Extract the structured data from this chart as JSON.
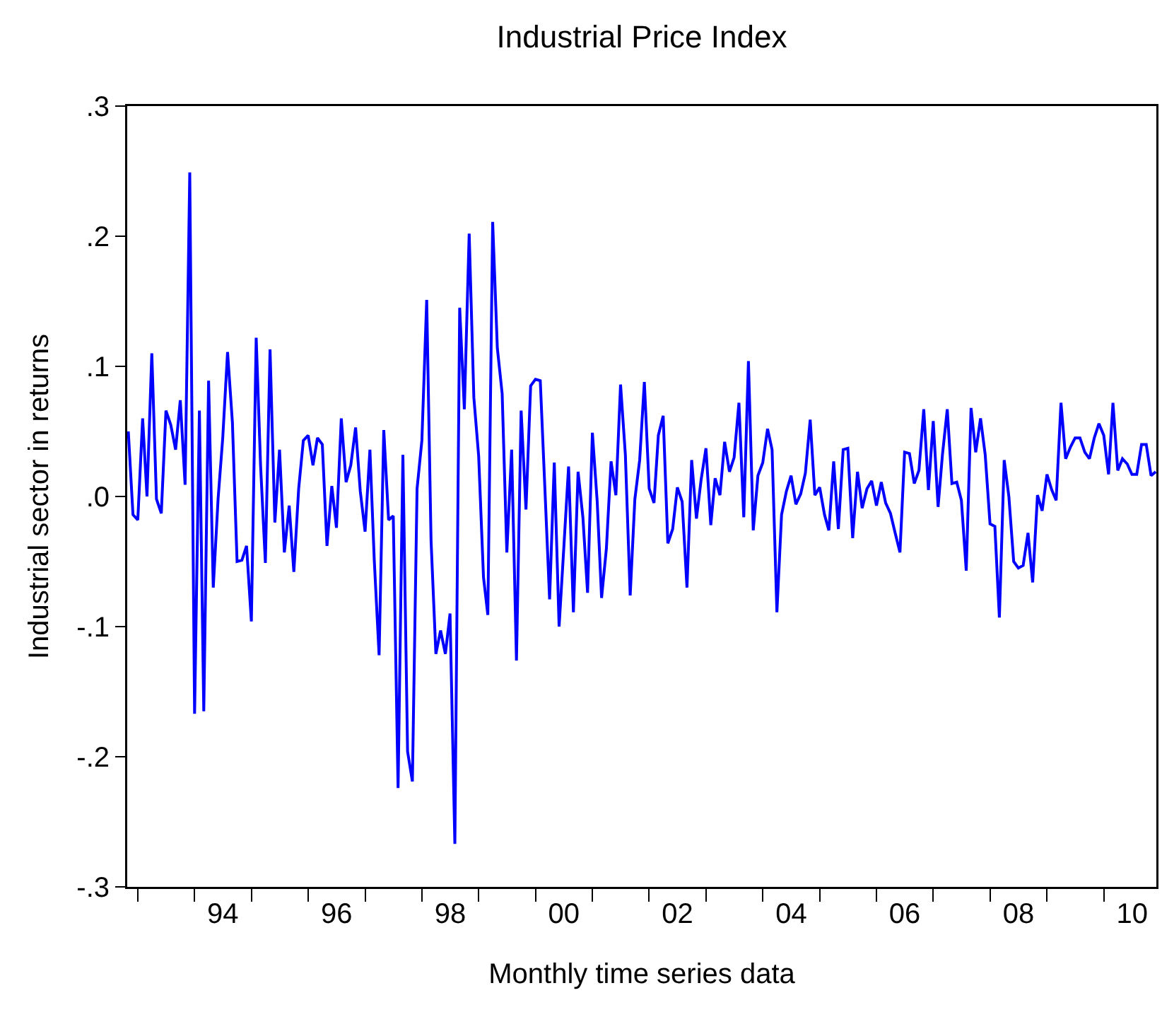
{
  "chart_data": {
    "type": "line",
    "title": "Industrial Price Index",
    "xlabel": "Monthly time series data",
    "ylabel": "Industrial sector in returns",
    "x": [
      "1992-11",
      "1992-12",
      "1993-01",
      "1993-02",
      "1993-03",
      "1993-04",
      "1993-05",
      "1993-06",
      "1993-07",
      "1993-08",
      "1993-09",
      "1993-10",
      "1993-11",
      "1993-12",
      "1994-01",
      "1994-02",
      "1994-03",
      "1994-04",
      "1994-05",
      "1994-06",
      "1994-07",
      "1994-08",
      "1994-09",
      "1994-10",
      "1994-11",
      "1994-12",
      "1995-01",
      "1995-02",
      "1995-03",
      "1995-04",
      "1995-05",
      "1995-06",
      "1995-07",
      "1995-08",
      "1995-09",
      "1995-10",
      "1995-11",
      "1995-12",
      "1996-01",
      "1996-02",
      "1996-03",
      "1996-04",
      "1996-05",
      "1996-06",
      "1996-07",
      "1996-08",
      "1996-09",
      "1996-10",
      "1996-11",
      "1996-12",
      "1997-01",
      "1997-02",
      "1997-03",
      "1997-04",
      "1997-05",
      "1997-06",
      "1997-07",
      "1997-08",
      "1997-09",
      "1997-10",
      "1997-11",
      "1997-12",
      "1998-01",
      "1998-02",
      "1998-03",
      "1998-04",
      "1998-05",
      "1998-06",
      "1998-07",
      "1998-08",
      "1998-09",
      "1998-10",
      "1998-11",
      "1998-12",
      "1999-01",
      "1999-02",
      "1999-03",
      "1999-04",
      "1999-05",
      "1999-06",
      "1999-07",
      "1999-08",
      "1999-09",
      "1999-10",
      "1999-11",
      "1999-12",
      "2000-01",
      "2000-02",
      "2000-03",
      "2000-04",
      "2000-05",
      "2000-06",
      "2000-07",
      "2000-08",
      "2000-09",
      "2000-10",
      "2000-11",
      "2000-12",
      "2001-01",
      "2001-02",
      "2001-03",
      "2001-04",
      "2001-05",
      "2001-06",
      "2001-07",
      "2001-08",
      "2001-09",
      "2001-10",
      "2001-11",
      "2001-12",
      "2002-01",
      "2002-02",
      "2002-03",
      "2002-04",
      "2002-05",
      "2002-06",
      "2002-07",
      "2002-08",
      "2002-09",
      "2002-10",
      "2002-11",
      "2002-12",
      "2003-01",
      "2003-02",
      "2003-03",
      "2003-04",
      "2003-05",
      "2003-06",
      "2003-07",
      "2003-08",
      "2003-09",
      "2003-10",
      "2003-11",
      "2003-12",
      "2004-01",
      "2004-02",
      "2004-03",
      "2004-04",
      "2004-05",
      "2004-06",
      "2004-07",
      "2004-08",
      "2004-09",
      "2004-10",
      "2004-11",
      "2004-12",
      "2005-01",
      "2005-02",
      "2005-03",
      "2005-04",
      "2005-05",
      "2005-06",
      "2005-07",
      "2005-08",
      "2005-09",
      "2005-10",
      "2005-11",
      "2005-12",
      "2006-01",
      "2006-02",
      "2006-03",
      "2006-04",
      "2006-05",
      "2006-06",
      "2006-07",
      "2006-08",
      "2006-09",
      "2006-10",
      "2006-11",
      "2006-12",
      "2007-01",
      "2007-02",
      "2007-03",
      "2007-04",
      "2007-05",
      "2007-06",
      "2007-07",
      "2007-08",
      "2007-09",
      "2007-10",
      "2007-11",
      "2007-12",
      "2008-01",
      "2008-02",
      "2008-03",
      "2008-04",
      "2008-05",
      "2008-06",
      "2008-07",
      "2008-08",
      "2008-09",
      "2008-10",
      "2008-11",
      "2008-12",
      "2009-01",
      "2009-02",
      "2009-03",
      "2009-04",
      "2009-05",
      "2009-06",
      "2009-07",
      "2009-08",
      "2009-09",
      "2009-10",
      "2009-11",
      "2009-12",
      "2010-01",
      "2010-02",
      "2010-03",
      "2010-04",
      "2010-05",
      "2010-06",
      "2010-07",
      "2010-08",
      "2010-09",
      "2010-10",
      "2010-11",
      "2010-12"
    ],
    "series": [
      {
        "color": "#0000ff",
        "values": [
          0.05,
          -0.014,
          -0.018,
          0.06,
          0.0,
          0.11,
          -0.002,
          -0.013,
          0.066,
          0.055,
          0.036,
          0.074,
          0.009,
          0.249,
          -0.167,
          0.066,
          -0.165,
          0.089,
          -0.07,
          -0.002,
          0.045,
          0.111,
          0.057,
          -0.05,
          -0.049,
          -0.038,
          -0.096,
          0.122,
          0.024,
          -0.051,
          0.113,
          -0.02,
          0.036,
          -0.043,
          -0.007,
          -0.058,
          0.006,
          0.043,
          0.047,
          0.024,
          0.045,
          0.04,
          -0.038,
          0.008,
          -0.024,
          0.06,
          0.011,
          0.024,
          0.053,
          0.004,
          -0.027,
          0.036,
          -0.049,
          -0.122,
          0.051,
          -0.018,
          -0.015,
          -0.224,
          0.032,
          -0.196,
          -0.219,
          0.006,
          0.043,
          0.151,
          -0.034,
          -0.121,
          -0.103,
          -0.121,
          -0.09,
          -0.267,
          0.145,
          0.067,
          0.202,
          0.076,
          0.031,
          -0.062,
          -0.091,
          0.211,
          0.114,
          0.079,
          -0.043,
          0.036,
          -0.126,
          0.066,
          -0.01,
          0.085,
          0.09,
          0.089,
          0.008,
          -0.079,
          0.026,
          -0.1,
          -0.04,
          0.023,
          -0.089,
          0.019,
          -0.016,
          -0.074,
          0.049,
          -0.004,
          -0.078,
          -0.04,
          0.027,
          0.001,
          0.086,
          0.032,
          -0.076,
          -0.002,
          0.028,
          0.088,
          0.006,
          -0.005,
          0.047,
          0.062,
          -0.036,
          -0.025,
          0.007,
          -0.004,
          -0.07,
          0.028,
          -0.017,
          0.013,
          0.037,
          -0.022,
          0.014,
          0.001,
          0.042,
          0.019,
          0.03,
          0.072,
          -0.016,
          0.104,
          -0.026,
          0.016,
          0.026,
          0.052,
          0.036,
          -0.089,
          -0.014,
          0.004,
          0.016,
          -0.006,
          0.002,
          0.018,
          0.059,
          0.001,
          0.007,
          -0.014,
          -0.026,
          0.027,
          -0.025,
          0.036,
          0.037,
          -0.032,
          0.019,
          -0.009,
          0.006,
          0.012,
          -0.007,
          0.011,
          -0.005,
          -0.013,
          -0.028,
          -0.043,
          0.034,
          0.033,
          0.01,
          0.02,
          0.067,
          0.005,
          0.058,
          -0.008,
          0.032,
          0.067,
          0.01,
          0.011,
          -0.003,
          -0.057,
          0.068,
          0.034,
          0.06,
          0.032,
          -0.021,
          -0.023,
          -0.093,
          0.028,
          0.0,
          -0.05,
          -0.055,
          -0.053,
          -0.028,
          -0.066,
          0.001,
          -0.011,
          0.017,
          0.005,
          -0.003,
          0.072,
          0.029,
          0.038,
          0.045,
          0.045,
          0.034,
          0.029,
          0.045,
          0.056,
          0.047,
          0.017,
          0.072,
          0.02,
          0.029,
          0.025,
          0.017,
          0.017,
          0.04,
          0.04,
          0.016,
          0.019
        ]
      }
    ],
    "xlim": [
      "1992-10-25",
      "2010-12-05"
    ],
    "xticks": [
      {
        "value": "1993-01-01",
        "label": null
      },
      {
        "value": "1994-01-01",
        "label": null
      },
      {
        "value": "1994-07-02",
        "label": "94"
      },
      {
        "value": "1995-01-01",
        "label": null
      },
      {
        "value": "1996-01-01",
        "label": null
      },
      {
        "value": "1996-07-02",
        "label": "96"
      },
      {
        "value": "1997-01-01",
        "label": null
      },
      {
        "value": "1998-01-01",
        "label": null
      },
      {
        "value": "1998-07-02",
        "label": "98"
      },
      {
        "value": "1999-01-01",
        "label": null
      },
      {
        "value": "2000-01-01",
        "label": null
      },
      {
        "value": "2000-07-02",
        "label": "00"
      },
      {
        "value": "2001-01-01",
        "label": null
      },
      {
        "value": "2002-01-01",
        "label": null
      },
      {
        "value": "2002-07-02",
        "label": "02"
      },
      {
        "value": "2003-01-01",
        "label": null
      },
      {
        "value": "2004-01-01",
        "label": null
      },
      {
        "value": "2004-07-02",
        "label": "04"
      },
      {
        "value": "2005-01-01",
        "label": null
      },
      {
        "value": "2006-01-01",
        "label": null
      },
      {
        "value": "2006-07-02",
        "label": "06"
      },
      {
        "value": "2007-01-01",
        "label": null
      },
      {
        "value": "2008-01-01",
        "label": null
      },
      {
        "value": "2008-07-02",
        "label": "08"
      },
      {
        "value": "2009-01-01",
        "label": null
      },
      {
        "value": "2010-01-01",
        "label": null
      },
      {
        "value": "2010-07-02",
        "label": "10"
      }
    ],
    "ylim": [
      -0.3,
      0.3
    ],
    "yticks": [
      {
        "value": -0.3,
        "label": "-.3"
      },
      {
        "value": -0.2,
        "label": "-.2"
      },
      {
        "value": -0.1,
        "label": "-.1"
      },
      {
        "value": 0,
        "label": ".0"
      },
      {
        "value": 0.1,
        "label": ".1"
      },
      {
        "value": 0.2,
        "label": ".2"
      },
      {
        "value": 0.3,
        "label": ".3"
      }
    ],
    "grid": false,
    "marker": "none",
    "line_style": "solid"
  }
}
